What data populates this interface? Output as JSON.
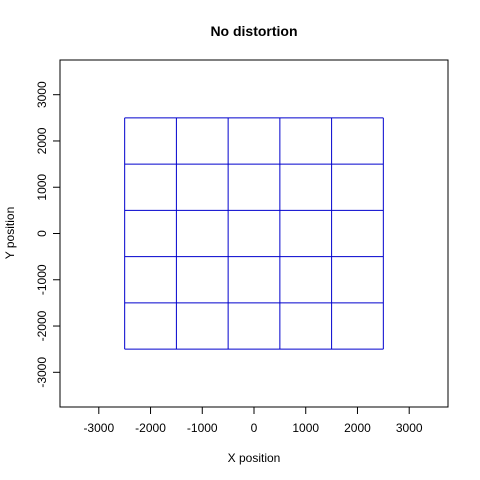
{
  "chart_data": {
    "type": "line",
    "title": "No distortion",
    "xlabel": "X position",
    "ylabel": "Y position",
    "xlim": [
      -3750,
      3750
    ],
    "ylim": [
      -3750,
      3750
    ],
    "x_ticks": [
      -3000,
      -2000,
      -1000,
      0,
      1000,
      2000,
      3000
    ],
    "y_ticks": [
      -3000,
      -2000,
      -1000,
      0,
      1000,
      2000,
      3000
    ],
    "grid_x": [
      -2500,
      -1500,
      -500,
      500,
      1500,
      2500
    ],
    "grid_y": [
      -2500,
      -1500,
      -500,
      500,
      1500,
      2500
    ],
    "grid_color": "#0000CD",
    "grid": false
  }
}
